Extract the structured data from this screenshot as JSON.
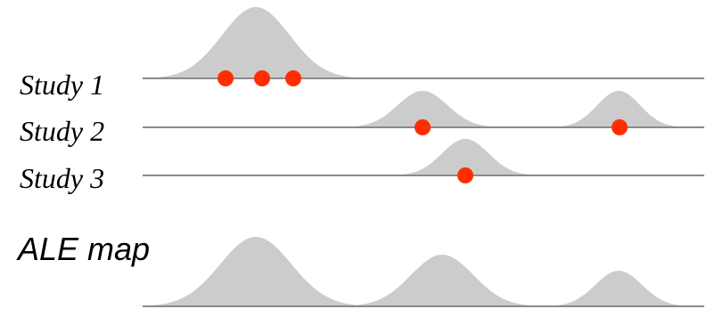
{
  "rows": [
    {
      "label": "Study 1",
      "foci_count": 3
    },
    {
      "label": "Study 2",
      "foci_count": 2
    },
    {
      "label": "Study 3",
      "foci_count": 1
    }
  ],
  "ale_map": {
    "label": "ALE map",
    "peak_count": 3
  },
  "colors": {
    "focus": "#ff2d00",
    "blob": "#cccccc",
    "baseline": "#8a8a8a"
  }
}
